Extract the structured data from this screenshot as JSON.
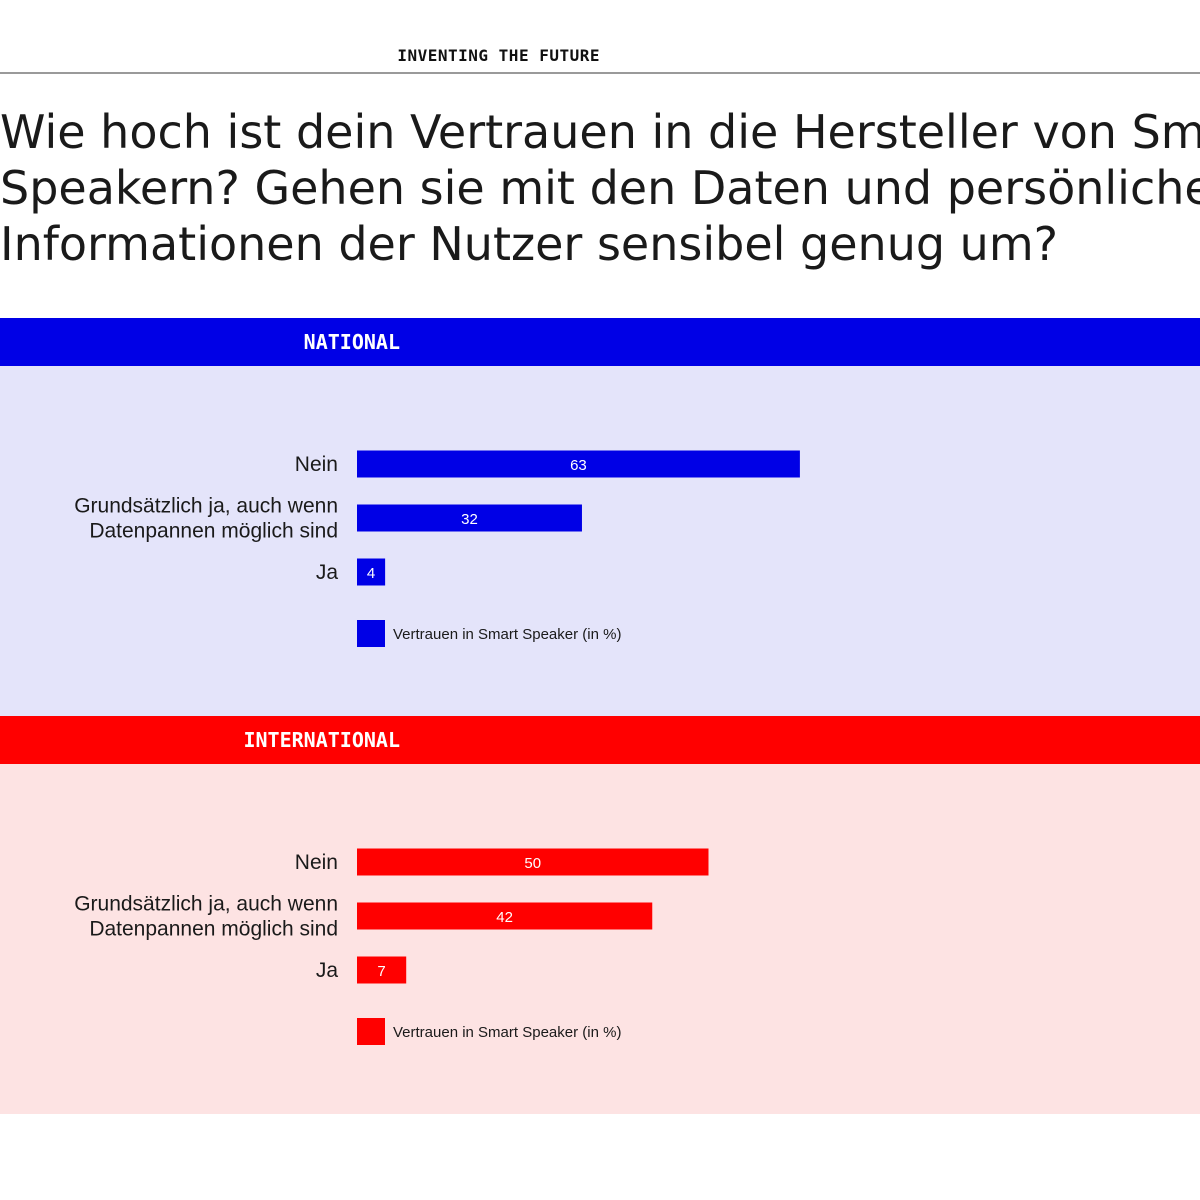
{
  "header": {
    "kicker": "INVENTING THE FUTURE",
    "title_lines": [
      "Wie hoch ist dein Vertrauen in die Hersteller von Smart",
      "Speakern? Gehen sie mit den Daten und persönlichen",
      "Informationen der Nutzer sensibel genug um?"
    ]
  },
  "colors": {
    "national": "#0000e6",
    "national_bg": "#e4e4fa",
    "international": "#ff0000",
    "international_bg": "#fde3e3"
  },
  "panels": [
    {
      "label": "NATIONAL"
    },
    {
      "label": "INTERNATIONAL"
    }
  ],
  "chart_data": [
    {
      "type": "bar",
      "orientation": "horizontal",
      "categories": [
        "Nein",
        "Grundsätzlich ja, auch wenn Datenpannen möglich sind",
        "Ja"
      ],
      "category_lines": [
        [
          "Nein"
        ],
        [
          "Grundsätzlich ja, auch wenn",
          "Datenpannen möglich sind"
        ],
        [
          "Ja"
        ]
      ],
      "series": [
        {
          "name": "Vertrauen in Smart Speaker (in %)",
          "values": [
            63,
            32,
            4
          ]
        }
      ],
      "xlim": [
        0,
        100
      ],
      "legend": "bottom-left",
      "grid": false,
      "data_labels": true
    },
    {
      "type": "bar",
      "orientation": "horizontal",
      "categories": [
        "Nein",
        "Grundsätzlich ja, auch wenn Datenpannen möglich sind",
        "Ja"
      ],
      "category_lines": [
        [
          "Nein"
        ],
        [
          "Grundsätzlich ja, auch wenn",
          "Datenpannen möglich sind"
        ],
        [
          "Ja"
        ]
      ],
      "series": [
        {
          "name": "Vertrauen in Smart Speaker (in %)",
          "values": [
            50,
            42,
            7
          ]
        }
      ],
      "xlim": [
        0,
        100
      ],
      "legend": "bottom-left",
      "grid": false,
      "data_labels": true
    }
  ]
}
